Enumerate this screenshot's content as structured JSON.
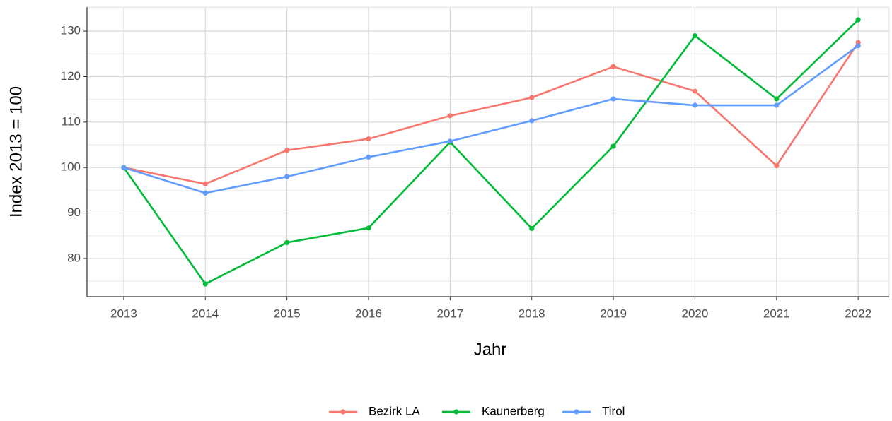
{
  "chart_data": {
    "type": "line",
    "x_label": "Jahr",
    "y_label": "Index  2013  = 100",
    "x": [
      2013,
      2014,
      2015,
      2016,
      2017,
      2018,
      2019,
      2020,
      2021,
      2022
    ],
    "series": [
      {
        "name": "Bezirk LA",
        "color": "#F8766D",
        "values": [
          100,
          96.4,
          103.8,
          106.3,
          111.4,
          115.4,
          122.2,
          116.8,
          100.4,
          127.5
        ]
      },
      {
        "name": "Kaunerberg",
        "color": "#00BA38",
        "values": [
          100,
          74.4,
          83.5,
          86.7,
          105.6,
          86.6,
          104.7,
          129.0,
          115.1,
          132.5
        ]
      },
      {
        "name": "Tirol",
        "color": "#619CFF",
        "values": [
          100,
          94.4,
          98.0,
          102.3,
          105.8,
          110.3,
          115.1,
          113.7,
          113.7,
          126.8
        ]
      }
    ],
    "xlim": [
      2012.55,
      2022.38
    ],
    "xticks": [
      2013,
      2014,
      2015,
      2016,
      2017,
      2018,
      2019,
      2020,
      2021,
      2022
    ],
    "ylim": [
      71.6,
      135.3
    ],
    "yticks": [
      80,
      90,
      100,
      110,
      120,
      130
    ],
    "grid": true,
    "legend": "bottom"
  }
}
